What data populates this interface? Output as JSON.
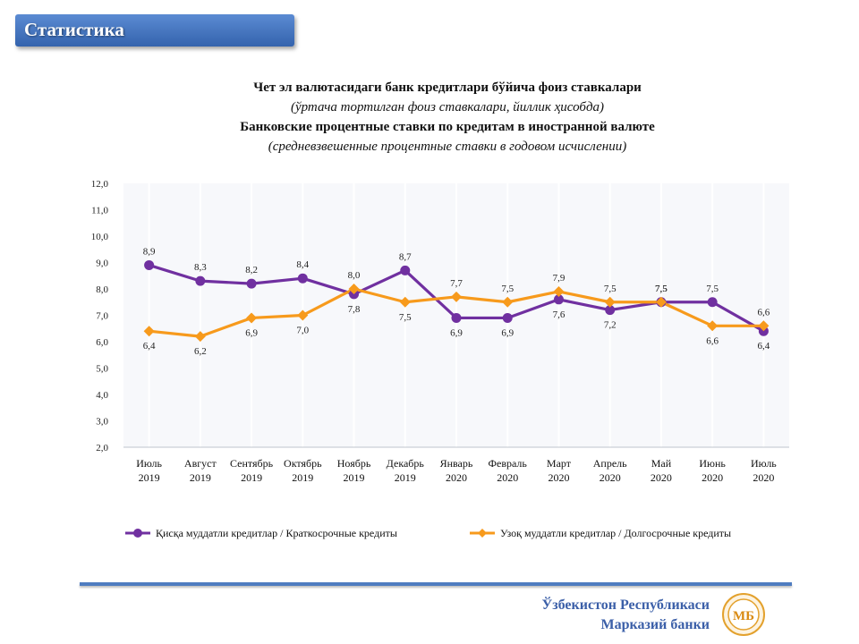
{
  "header": {
    "label": "Статистика"
  },
  "titles": {
    "line1": "Чет эл валютасидаги  банк кредитлари  бўйича фоиз ставкалари",
    "line2": "(ўртача тортилган фоиз ставкалари,  йиллик ҳисобда)",
    "line3": "Банковские  процентные  ставки по кредитам  в иностранной валюте",
    "line4": "(средневзвешенные  процентные  ставки в годовом  исчислении)"
  },
  "chart_data": {
    "type": "line",
    "categories": [
      [
        "Июль",
        "2019"
      ],
      [
        "Август",
        "2019"
      ],
      [
        "Сентябрь",
        "2019"
      ],
      [
        "Октябрь",
        "2019"
      ],
      [
        "Ноябрь",
        "2019"
      ],
      [
        "Декабрь",
        "2019"
      ],
      [
        "Январь",
        "2020"
      ],
      [
        "Февраль",
        "2020"
      ],
      [
        "Март",
        "2020"
      ],
      [
        "Апрель",
        "2020"
      ],
      [
        "Май",
        "2020"
      ],
      [
        "Июнь",
        "2020"
      ],
      [
        "Июль",
        "2020"
      ]
    ],
    "series": [
      {
        "name": "Қисқа муддатли кредитлар / Краткосрочные кредиты",
        "color": "#7030a0",
        "marker": "circle",
        "values": [
          8.9,
          8.3,
          8.2,
          8.4,
          7.8,
          8.7,
          6.9,
          6.9,
          7.6,
          7.2,
          7.5,
          7.5,
          6.4
        ],
        "labels": [
          "8,9",
          "8,3",
          "8,2",
          "8,4",
          "7,8",
          "8,7",
          "6,9",
          "6,9",
          "7,6",
          "7,2",
          "7,5",
          "7,5",
          "6,4"
        ]
      },
      {
        "name": "Узоқ муддатли кредитлар / Долгосрочные кредиты",
        "color": "#f79a1c",
        "marker": "diamond",
        "values": [
          6.4,
          6.2,
          6.9,
          7.0,
          8.0,
          7.5,
          7.7,
          7.5,
          7.9,
          7.5,
          7.5,
          6.6,
          6.6
        ],
        "labels": [
          "6,4",
          "6,2",
          "6,9",
          "7,0",
          "8,0",
          "7,5",
          "7,7",
          "7,5",
          "7,9",
          "7,5",
          "7,5",
          "6,6",
          "6,6"
        ]
      }
    ],
    "ylim": [
      2.0,
      12.0
    ],
    "yticks": [
      "2,0",
      "3,0",
      "4,0",
      "5,0",
      "6,0",
      "7,0",
      "8,0",
      "9,0",
      "10,0",
      "11,0",
      "12,0"
    ],
    "grid": "vertical",
    "legend": "bottom"
  },
  "footer": {
    "line1": "Ўзбекистон Республикаси",
    "line2": "Марказий банки"
  },
  "logo": {
    "text": "МБ"
  }
}
